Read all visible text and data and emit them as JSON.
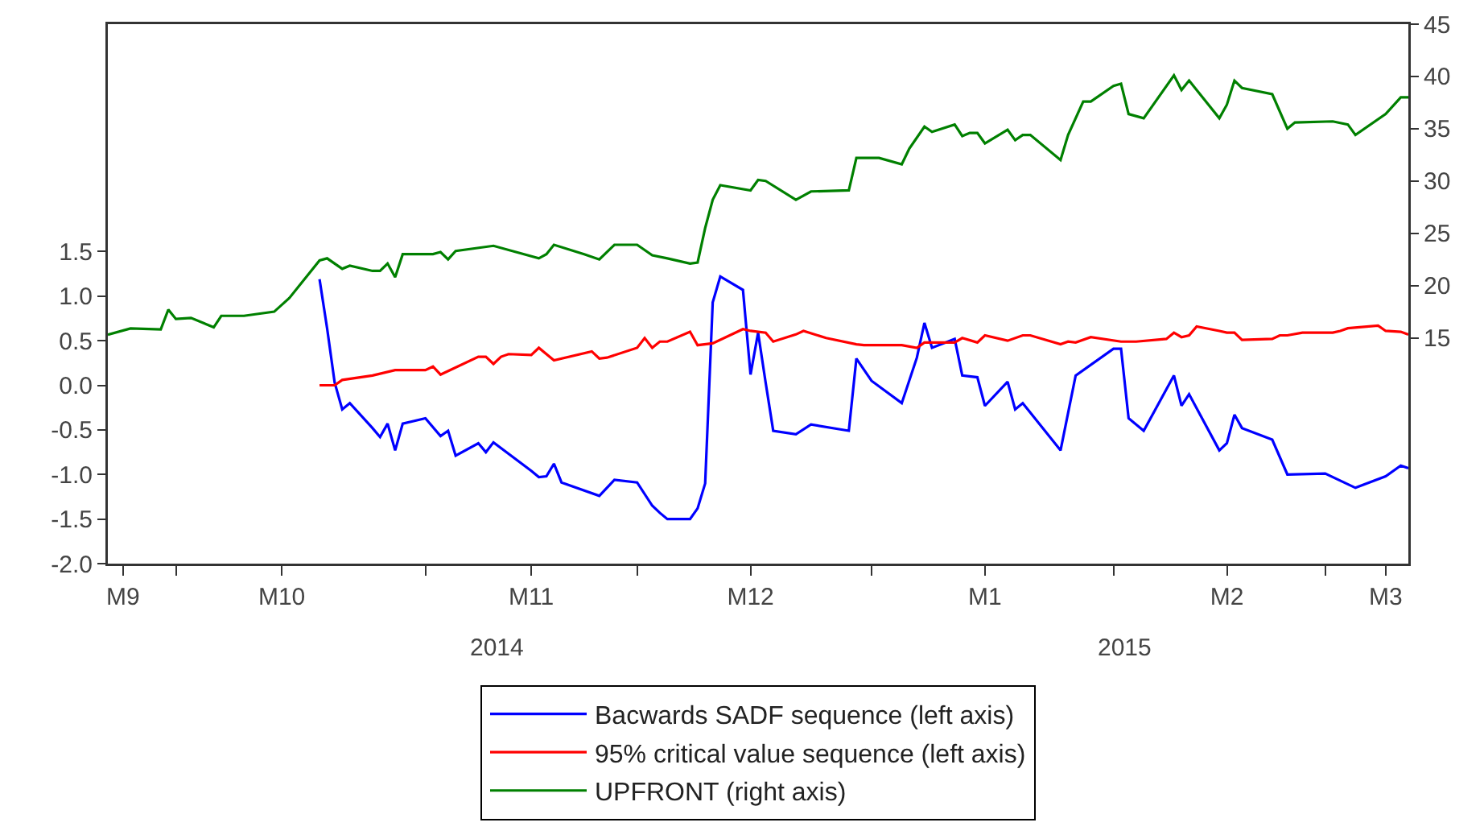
{
  "chart_data": {
    "type": "line",
    "legend": "bottom",
    "grid": false,
    "marker": "none",
    "line_style": "solid",
    "annotations": [
      "2014",
      "2015"
    ],
    "xlim": [
      "2014-09-22",
      "2015-03-13"
    ],
    "xticks": [
      {
        "value": "2014-09-24",
        "label": "M9"
      },
      {
        "value": "2014-10-01",
        "label": null
      },
      {
        "value": "2014-10-15",
        "label": "M10"
      },
      {
        "value": "2014-11-03",
        "label": null
      },
      {
        "value": "2014-11-17",
        "label": "M11"
      },
      {
        "value": "2014-12-01",
        "label": null
      },
      {
        "value": "2014-12-16",
        "label": "M12"
      },
      {
        "value": "2015-01-01",
        "label": null
      },
      {
        "value": "2015-01-16",
        "label": "M1"
      },
      {
        "value": "2015-02-02",
        "label": null
      },
      {
        "value": "2015-02-17",
        "label": "M2"
      },
      {
        "value": "2015-03-02",
        "label": null
      },
      {
        "value": "2015-03-10",
        "label": "M3"
      }
    ],
    "ylim": [
      -2,
      4.05
    ],
    "yticks": [
      {
        "value": -2,
        "label": "-2.0"
      },
      -1.5,
      {
        "value": -1,
        "label": "-1.0"
      },
      -0.5,
      {
        "value": 0,
        "label": "0.0"
      },
      0.5,
      {
        "value": 1,
        "label": "1.0"
      },
      1.5
    ],
    "y2lim": [
      -6.6,
      45
    ],
    "y2ticks": [
      15,
      20,
      25,
      30,
      35,
      40,
      45
    ],
    "series": [
      {
        "name": "Bacwards SADF sequence (left axis)",
        "color": "#0000ff",
        "x": [
          "2014-10-20",
          "2014-10-21",
          "2014-10-22",
          "2014-10-23",
          "2014-10-24",
          "2014-10-27",
          "2014-10-28",
          "2014-10-29",
          "2014-10-30",
          "2014-10-31",
          "2014-11-03",
          "2014-11-05",
          "2014-11-06",
          "2014-11-07",
          "2014-11-10",
          "2014-11-11",
          "2014-11-12",
          "2014-11-17",
          "2014-11-18",
          "2014-11-19",
          "2014-11-20",
          "2014-11-21",
          "2014-11-26",
          "2014-11-28",
          "2014-12-01",
          "2014-12-03",
          "2014-12-04",
          "2014-12-05",
          "2014-12-08",
          "2014-12-09",
          "2014-12-10",
          "2014-12-11",
          "2014-12-12",
          "2014-12-15",
          "2014-12-16",
          "2014-12-17",
          "2014-12-18",
          "2014-12-19",
          "2014-12-22",
          "2014-12-24",
          "2014-12-29",
          "2014-12-30",
          "2015-01-01",
          "2015-01-05",
          "2015-01-07",
          "2015-01-08",
          "2015-01-09",
          "2015-01-12",
          "2015-01-13",
          "2015-01-15",
          "2015-01-16",
          "2015-01-19",
          "2015-01-20",
          "2015-01-21",
          "2015-01-26",
          "2015-01-28",
          "2015-02-02",
          "2015-02-03",
          "2015-02-04",
          "2015-02-06",
          "2015-02-10",
          "2015-02-11",
          "2015-02-12",
          "2015-02-16",
          "2015-02-17",
          "2015-02-18",
          "2015-02-19",
          "2015-02-23",
          "2015-02-25",
          "2015-03-02",
          "2015-03-06",
          "2015-03-10",
          "2015-03-12",
          "2015-03-13"
        ],
        "values": [
          1.19,
          0.64,
          0.03,
          -0.27,
          -0.2,
          -0.48,
          -0.58,
          -0.43,
          -0.73,
          -0.43,
          -0.37,
          -0.57,
          -0.51,
          -0.79,
          -0.65,
          -0.75,
          -0.64,
          -0.96,
          -1.03,
          -1.02,
          -0.88,
          -1.09,
          -1.24,
          -1.06,
          -1.09,
          -1.35,
          -1.43,
          -1.5,
          -1.5,
          -1.38,
          -1.1,
          0.93,
          1.22,
          1.07,
          0.12,
          0.59,
          0.03,
          -0.51,
          -0.55,
          -0.44,
          -0.51,
          0.3,
          0.05,
          -0.2,
          0.31,
          0.7,
          0.42,
          0.52,
          0.11,
          0.09,
          -0.23,
          0.04,
          -0.27,
          -0.2,
          -0.73,
          0.11,
          0.41,
          0.41,
          -0.37,
          -0.51,
          0.11,
          -0.23,
          -0.1,
          -0.73,
          -0.65,
          -0.33,
          -0.48,
          -0.61,
          -1.0,
          -0.99,
          -1.15,
          -1.02,
          -0.9,
          -0.93
        ]
      },
      {
        "name": "95% critical value sequence (left axis)",
        "color": "#ff0000",
        "x": [
          "2014-10-20",
          "2014-10-22",
          "2014-10-23",
          "2014-10-27",
          "2014-10-30",
          "2014-11-03",
          "2014-11-04",
          "2014-11-05",
          "2014-11-10",
          "2014-11-11",
          "2014-11-12",
          "2014-11-13",
          "2014-11-14",
          "2014-11-17",
          "2014-11-18",
          "2014-11-20",
          "2014-11-25",
          "2014-11-26",
          "2014-11-27",
          "2014-12-01",
          "2014-12-02",
          "2014-12-03",
          "2014-12-04",
          "2014-12-05",
          "2014-12-08",
          "2014-12-09",
          "2014-12-11",
          "2014-12-15",
          "2014-12-16",
          "2014-12-18",
          "2014-12-19",
          "2014-12-22",
          "2014-12-23",
          "2014-12-26",
          "2014-12-30",
          "2014-12-31",
          "2015-01-05",
          "2015-01-07",
          "2015-01-08",
          "2015-01-12",
          "2015-01-13",
          "2015-01-15",
          "2015-01-16",
          "2015-01-19",
          "2015-01-21",
          "2015-01-22",
          "2015-01-26",
          "2015-01-27",
          "2015-01-28",
          "2015-01-30",
          "2015-02-03",
          "2015-02-05",
          "2015-02-09",
          "2015-02-10",
          "2015-02-11",
          "2015-02-12",
          "2015-02-13",
          "2015-02-16",
          "2015-02-17",
          "2015-02-18",
          "2015-02-19",
          "2015-02-23",
          "2015-02-24",
          "2015-02-25",
          "2015-02-27",
          "2015-03-03",
          "2015-03-04",
          "2015-03-05",
          "2015-03-09",
          "2015-03-10",
          "2015-03-12",
          "2015-03-13"
        ],
        "values": [
          0.0,
          0.0,
          0.06,
          0.11,
          0.17,
          0.17,
          0.21,
          0.12,
          0.32,
          0.32,
          0.24,
          0.32,
          0.35,
          0.34,
          0.42,
          0.28,
          0.38,
          0.3,
          0.31,
          0.42,
          0.53,
          0.42,
          0.49,
          0.49,
          0.6,
          0.45,
          0.47,
          0.63,
          0.61,
          0.59,
          0.49,
          0.57,
          0.61,
          0.53,
          0.46,
          0.45,
          0.45,
          0.42,
          0.48,
          0.48,
          0.53,
          0.48,
          0.56,
          0.5,
          0.56,
          0.56,
          0.46,
          0.49,
          0.48,
          0.54,
          0.49,
          0.49,
          0.52,
          0.59,
          0.54,
          0.56,
          0.66,
          0.61,
          0.59,
          0.59,
          0.51,
          0.52,
          0.56,
          0.56,
          0.59,
          0.59,
          0.61,
          0.64,
          0.67,
          0.61,
          0.6,
          0.57
        ]
      },
      {
        "name": "UPFRONT (right axis)",
        "color": "#008000",
        "axis": "y2",
        "x": [
          "2014-09-22",
          "2014-09-25",
          "2014-09-29",
          "2014-09-30",
          "2014-10-01",
          "2014-10-03",
          "2014-10-06",
          "2014-10-07",
          "2014-10-10",
          "2014-10-14",
          "2014-10-16",
          "2014-10-20",
          "2014-10-21",
          "2014-10-23",
          "2014-10-24",
          "2014-10-27",
          "2014-10-28",
          "2014-10-29",
          "2014-10-30",
          "2014-10-31",
          "2014-11-04",
          "2014-11-05",
          "2014-11-06",
          "2014-11-07",
          "2014-11-12",
          "2014-11-18",
          "2014-11-19",
          "2014-11-20",
          "2014-11-24",
          "2014-11-26",
          "2014-11-28",
          "2014-12-01",
          "2014-12-03",
          "2014-12-05",
          "2014-12-08",
          "2014-12-09",
          "2014-12-10",
          "2014-12-11",
          "2014-12-12",
          "2014-12-16",
          "2014-12-17",
          "2014-12-18",
          "2014-12-22",
          "2014-12-24",
          "2014-12-29",
          "2014-12-30",
          "2015-01-02",
          "2015-01-05",
          "2015-01-06",
          "2015-01-08",
          "2015-01-09",
          "2015-01-12",
          "2015-01-13",
          "2015-01-14",
          "2015-01-15",
          "2015-01-16",
          "2015-01-19",
          "2015-01-20",
          "2015-01-21",
          "2015-01-22",
          "2015-01-26",
          "2015-01-27",
          "2015-01-29",
          "2015-01-30",
          "2015-02-02",
          "2015-02-03",
          "2015-02-04",
          "2015-02-06",
          "2015-02-10",
          "2015-02-11",
          "2015-02-12",
          "2015-02-13",
          "2015-02-16",
          "2015-02-17",
          "2015-02-18",
          "2015-02-19",
          "2015-02-23",
          "2015-02-25",
          "2015-02-26",
          "2015-03-03",
          "2015-03-05",
          "2015-03-06",
          "2015-03-10",
          "2015-03-12",
          "2015-03-13"
        ],
        "values": [
          15.3,
          15.9,
          15.8,
          17.7,
          16.8,
          16.9,
          16.0,
          17.1,
          17.1,
          17.5,
          18.8,
          22.4,
          22.6,
          21.6,
          21.9,
          21.4,
          21.4,
          22.1,
          20.8,
          23.0,
          23.0,
          23.2,
          22.5,
          23.3,
          23.8,
          22.6,
          23.0,
          23.9,
          23.0,
          22.5,
          23.9,
          23.9,
          22.9,
          22.6,
          22.1,
          22.2,
          25.5,
          28.2,
          29.6,
          29.1,
          30.1,
          30.0,
          28.2,
          29.0,
          29.1,
          32.2,
          32.2,
          31.6,
          33.1,
          35.2,
          34.7,
          35.4,
          34.3,
          34.6,
          34.6,
          33.6,
          34.9,
          33.9,
          34.4,
          34.4,
          32.0,
          34.4,
          37.6,
          37.6,
          39.1,
          39.3,
          36.4,
          36.0,
          40.1,
          38.7,
          39.6,
          38.7,
          36.0,
          37.3,
          39.6,
          38.9,
          38.3,
          35.0,
          35.6,
          35.7,
          35.4,
          34.4,
          36.4,
          38.0,
          38.0
        ]
      }
    ]
  }
}
